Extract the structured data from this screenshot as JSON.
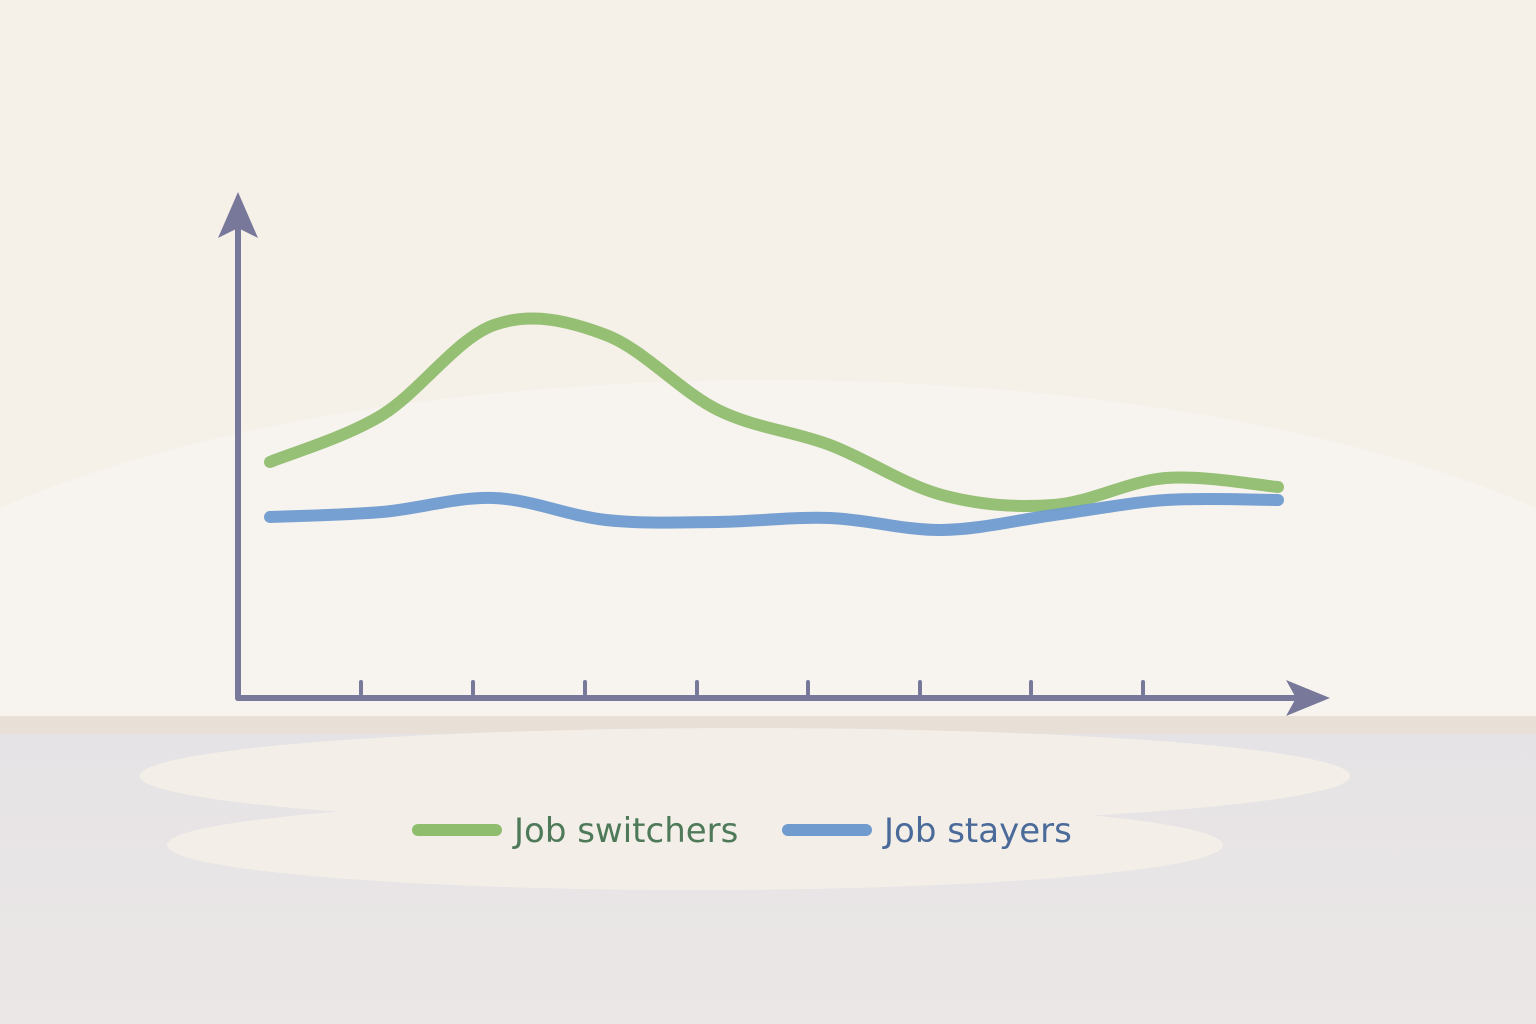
{
  "chart_data": {
    "type": "line",
    "categories": [
      null,
      null,
      null,
      null,
      null,
      null,
      null,
      null,
      null,
      null
    ],
    "series": [
      {
        "name": "Job switchers",
        "color": "#8fbd6e",
        "values": [
          47.2,
          56.6,
          74.6,
          72.6,
          57.6,
          50.6,
          40.6,
          38.6,
          44,
          42.2
        ]
      },
      {
        "name": "Job stayers",
        "color": "#6f9bcf",
        "values": [
          36.2,
          37.2,
          40,
          35.6,
          35.2,
          36,
          33.6,
          36.6,
          39.6,
          39.6
        ]
      }
    ],
    "ylim": [
      0,
      100
    ],
    "legend": "bottom"
  }
}
